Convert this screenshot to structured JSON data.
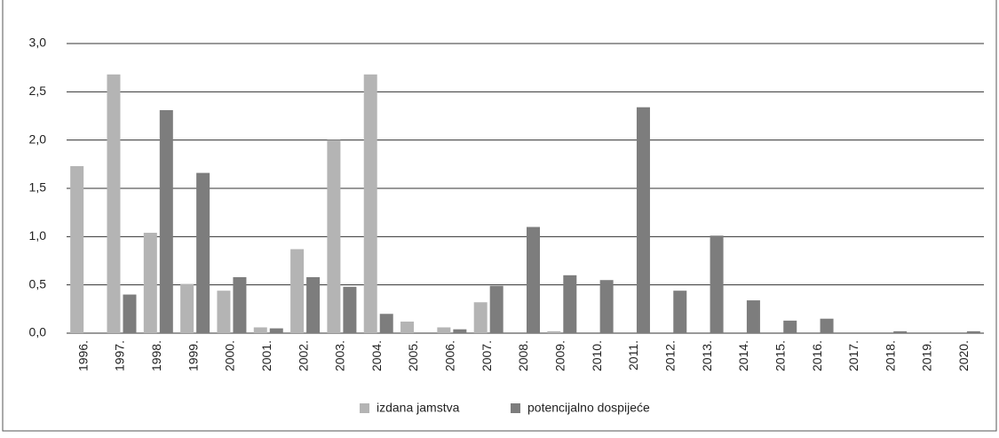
{
  "chart_data": {
    "type": "bar",
    "categories": [
      "1996.",
      "1997.",
      "1998.",
      "1999.",
      "2000.",
      "2001.",
      "2002.",
      "2003.",
      "2004.",
      "2005.",
      "2006.",
      "2007.",
      "2008.",
      "2009.",
      "2010.",
      "2011.",
      "2012.",
      "2013.",
      "2014.",
      "2015.",
      "2016.",
      "2017.",
      "2018.",
      "2019.",
      "2020."
    ],
    "series": [
      {
        "name": "izdana jamstva",
        "color": "#b4b4b4",
        "values": [
          1.73,
          2.68,
          1.04,
          0.51,
          0.44,
          0.06,
          0.87,
          2.0,
          2.68,
          0.12,
          0.06,
          0.32,
          0,
          0.02,
          0,
          0,
          0,
          0,
          0,
          0,
          0,
          0,
          0,
          0,
          0
        ]
      },
      {
        "name": "potencijalno dospijeće",
        "color": "#7d7d7d",
        "values": [
          0,
          0.4,
          2.31,
          1.66,
          0.58,
          0.05,
          0.58,
          0.48,
          0.2,
          0,
          0.04,
          0.49,
          1.1,
          0.6,
          0.55,
          2.34,
          0.44,
          1.01,
          0.34,
          0.13,
          0.15,
          0,
          0.02,
          0,
          0.02
        ]
      }
    ],
    "ylim": [
      0,
      3
    ],
    "yticks": [
      {
        "value": 0,
        "label": "0,0"
      },
      {
        "value": 0.5,
        "label": "0,5"
      },
      {
        "value": 1,
        "label": "1,0"
      },
      {
        "value": 1.5,
        "label": "1,5"
      },
      {
        "value": 2,
        "label": "2,0"
      },
      {
        "value": 2.5,
        "label": "2,5"
      },
      {
        "value": 3,
        "label": "3,0"
      }
    ],
    "grid": true,
    "legend": "bottom"
  }
}
